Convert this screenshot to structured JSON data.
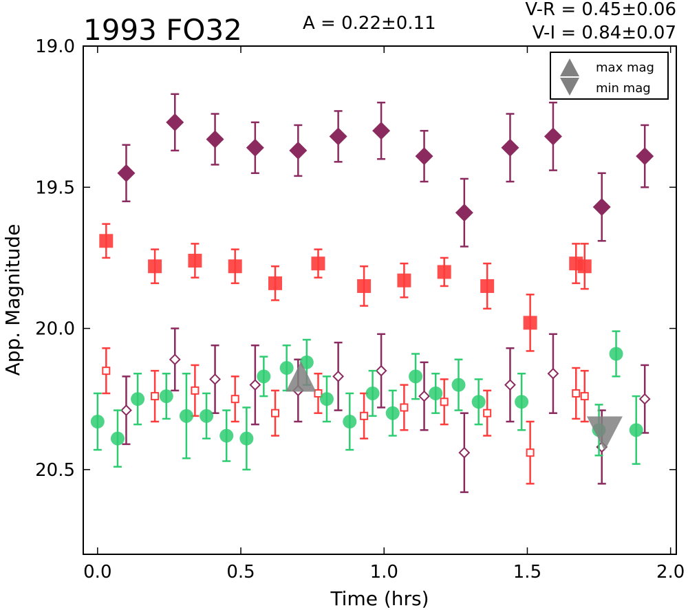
{
  "chart_data": {
    "type": "scatter",
    "title": "1993 FO32",
    "annotations": {
      "amplitude": "A  = 0.22±0.11",
      "v_r": "V-R = 0.45±0.06",
      "v_i": "V-I  = 0.84±0.07"
    },
    "xlabel": "Time (hrs)",
    "ylabel": "App. Magnitude",
    "xlim": [
      -0.05,
      2.02
    ],
    "ylim": [
      20.8,
      19.0
    ],
    "y_inverted": true,
    "xticks": [
      "0.0",
      "0.5",
      "1.0",
      "1.5",
      "2.0"
    ],
    "yticks": [
      "19.0",
      "19.5",
      "20.0",
      "20.5"
    ],
    "grid": false,
    "legend": {
      "position": "top-right",
      "entries": [
        {
          "label": "max mag",
          "marker": "triangle-up",
          "color": "#808080"
        },
        {
          "label": "min mag",
          "marker": "triangle-down",
          "color": "#808080"
        }
      ]
    },
    "series": [
      {
        "marker": "diamond",
        "filled": true,
        "color": "#8b2a5e",
        "points": [
          {
            "x": 0.1,
            "y": 19.45,
            "err": 0.1
          },
          {
            "x": 0.27,
            "y": 19.27,
            "err": 0.1
          },
          {
            "x": 0.41,
            "y": 19.33,
            "err": 0.09
          },
          {
            "x": 0.55,
            "y": 19.36,
            "err": 0.09
          },
          {
            "x": 0.7,
            "y": 19.37,
            "err": 0.09
          },
          {
            "x": 0.84,
            "y": 19.32,
            "err": 0.09
          },
          {
            "x": 0.99,
            "y": 19.3,
            "err": 0.1
          },
          {
            "x": 1.14,
            "y": 19.39,
            "err": 0.09
          },
          {
            "x": 1.28,
            "y": 19.59,
            "err": 0.12
          },
          {
            "x": 1.44,
            "y": 19.36,
            "err": 0.12
          },
          {
            "x": 1.59,
            "y": 19.32,
            "err": 0.12
          },
          {
            "x": 1.76,
            "y": 19.57,
            "err": 0.12
          },
          {
            "x": 1.91,
            "y": 19.39,
            "err": 0.11
          }
        ]
      },
      {
        "marker": "square",
        "filled": true,
        "color": "#ff3b3b",
        "points": [
          {
            "x": 0.03,
            "y": 19.69,
            "err": 0.06
          },
          {
            "x": 0.2,
            "y": 19.78,
            "err": 0.06
          },
          {
            "x": 0.34,
            "y": 19.76,
            "err": 0.06
          },
          {
            "x": 0.48,
            "y": 19.78,
            "err": 0.06
          },
          {
            "x": 0.62,
            "y": 19.84,
            "err": 0.06
          },
          {
            "x": 0.77,
            "y": 19.77,
            "err": 0.05
          },
          {
            "x": 0.93,
            "y": 19.85,
            "err": 0.07
          },
          {
            "x": 1.07,
            "y": 19.83,
            "err": 0.06
          },
          {
            "x": 1.21,
            "y": 19.8,
            "err": 0.05
          },
          {
            "x": 1.36,
            "y": 19.85,
            "err": 0.08
          },
          {
            "x": 1.51,
            "y": 19.98,
            "err": 0.1
          },
          {
            "x": 1.67,
            "y": 19.77,
            "err": 0.07
          },
          {
            "x": 1.7,
            "y": 19.78,
            "err": 0.08
          }
        ]
      },
      {
        "marker": "diamond",
        "filled": false,
        "color": "#8b2a5e",
        "points": [
          {
            "x": 0.1,
            "y": 20.29,
            "err": 0.12
          },
          {
            "x": 0.27,
            "y": 20.11,
            "err": 0.11
          },
          {
            "x": 0.41,
            "y": 20.18,
            "err": 0.12
          },
          {
            "x": 0.55,
            "y": 20.2,
            "err": 0.14
          },
          {
            "x": 0.7,
            "y": 20.22,
            "err": 0.11
          },
          {
            "x": 0.84,
            "y": 20.17,
            "err": 0.12
          },
          {
            "x": 0.99,
            "y": 20.15,
            "err": 0.13
          },
          {
            "x": 1.14,
            "y": 20.24,
            "err": 0.12
          },
          {
            "x": 1.28,
            "y": 20.44,
            "err": 0.14
          },
          {
            "x": 1.44,
            "y": 20.2,
            "err": 0.13
          },
          {
            "x": 1.59,
            "y": 20.16,
            "err": 0.14
          },
          {
            "x": 1.76,
            "y": 20.42,
            "err": 0.13
          },
          {
            "x": 1.91,
            "y": 20.25,
            "err": 0.12
          }
        ]
      },
      {
        "marker": "square",
        "filled": false,
        "color": "#ff3b3b",
        "points": [
          {
            "x": 0.03,
            "y": 20.15,
            "err": 0.08
          },
          {
            "x": 0.2,
            "y": 20.24,
            "err": 0.09
          },
          {
            "x": 0.34,
            "y": 20.22,
            "err": 0.09
          },
          {
            "x": 0.48,
            "y": 20.25,
            "err": 0.08
          },
          {
            "x": 0.62,
            "y": 20.3,
            "err": 0.08
          },
          {
            "x": 0.77,
            "y": 20.23,
            "err": 0.07
          },
          {
            "x": 0.93,
            "y": 20.31,
            "err": 0.08
          },
          {
            "x": 1.07,
            "y": 20.28,
            "err": 0.08
          },
          {
            "x": 1.21,
            "y": 20.26,
            "err": 0.08
          },
          {
            "x": 1.36,
            "y": 20.3,
            "err": 0.08
          },
          {
            "x": 1.51,
            "y": 20.44,
            "err": 0.11
          },
          {
            "x": 1.67,
            "y": 20.23,
            "err": 0.09
          },
          {
            "x": 1.7,
            "y": 20.24,
            "err": 0.09
          }
        ]
      },
      {
        "marker": "circle",
        "filled": true,
        "color": "#2ecc71",
        "points": [
          {
            "x": 0.0,
            "y": 20.33,
            "err": 0.1
          },
          {
            "x": 0.07,
            "y": 20.39,
            "err": 0.1
          },
          {
            "x": 0.14,
            "y": 20.25,
            "err": 0.09
          },
          {
            "x": 0.24,
            "y": 20.24,
            "err": 0.08
          },
          {
            "x": 0.31,
            "y": 20.31,
            "err": 0.15
          },
          {
            "x": 0.38,
            "y": 20.31,
            "err": 0.08
          },
          {
            "x": 0.45,
            "y": 20.38,
            "err": 0.09
          },
          {
            "x": 0.52,
            "y": 20.39,
            "err": 0.11
          },
          {
            "x": 0.58,
            "y": 20.17,
            "err": 0.07
          },
          {
            "x": 0.66,
            "y": 20.14,
            "err": 0.08
          },
          {
            "x": 0.73,
            "y": 20.12,
            "err": 0.08
          },
          {
            "x": 0.8,
            "y": 20.25,
            "err": 0.08
          },
          {
            "x": 0.88,
            "y": 20.33,
            "err": 0.1
          },
          {
            "x": 0.96,
            "y": 20.23,
            "err": 0.08
          },
          {
            "x": 1.03,
            "y": 20.3,
            "err": 0.08
          },
          {
            "x": 1.11,
            "y": 20.17,
            "err": 0.08
          },
          {
            "x": 1.18,
            "y": 20.23,
            "err": 0.07
          },
          {
            "x": 1.26,
            "y": 20.2,
            "err": 0.09
          },
          {
            "x": 1.33,
            "y": 20.26,
            "err": 0.08
          },
          {
            "x": 1.48,
            "y": 20.26,
            "err": 0.1
          },
          {
            "x": 1.75,
            "y": 20.36,
            "err": 0.09
          },
          {
            "x": 1.81,
            "y": 20.09,
            "err": 0.08
          },
          {
            "x": 1.88,
            "y": 20.36,
            "err": 0.12
          }
        ]
      },
      {
        "marker": "triangle-up",
        "filled": true,
        "color": "#808080",
        "points": [
          {
            "x": 0.71,
            "y": 20.18
          }
        ]
      },
      {
        "marker": "triangle-down",
        "filled": true,
        "color": "#808080",
        "points": [
          {
            "x": 1.77,
            "y": 20.37
          }
        ]
      }
    ]
  }
}
